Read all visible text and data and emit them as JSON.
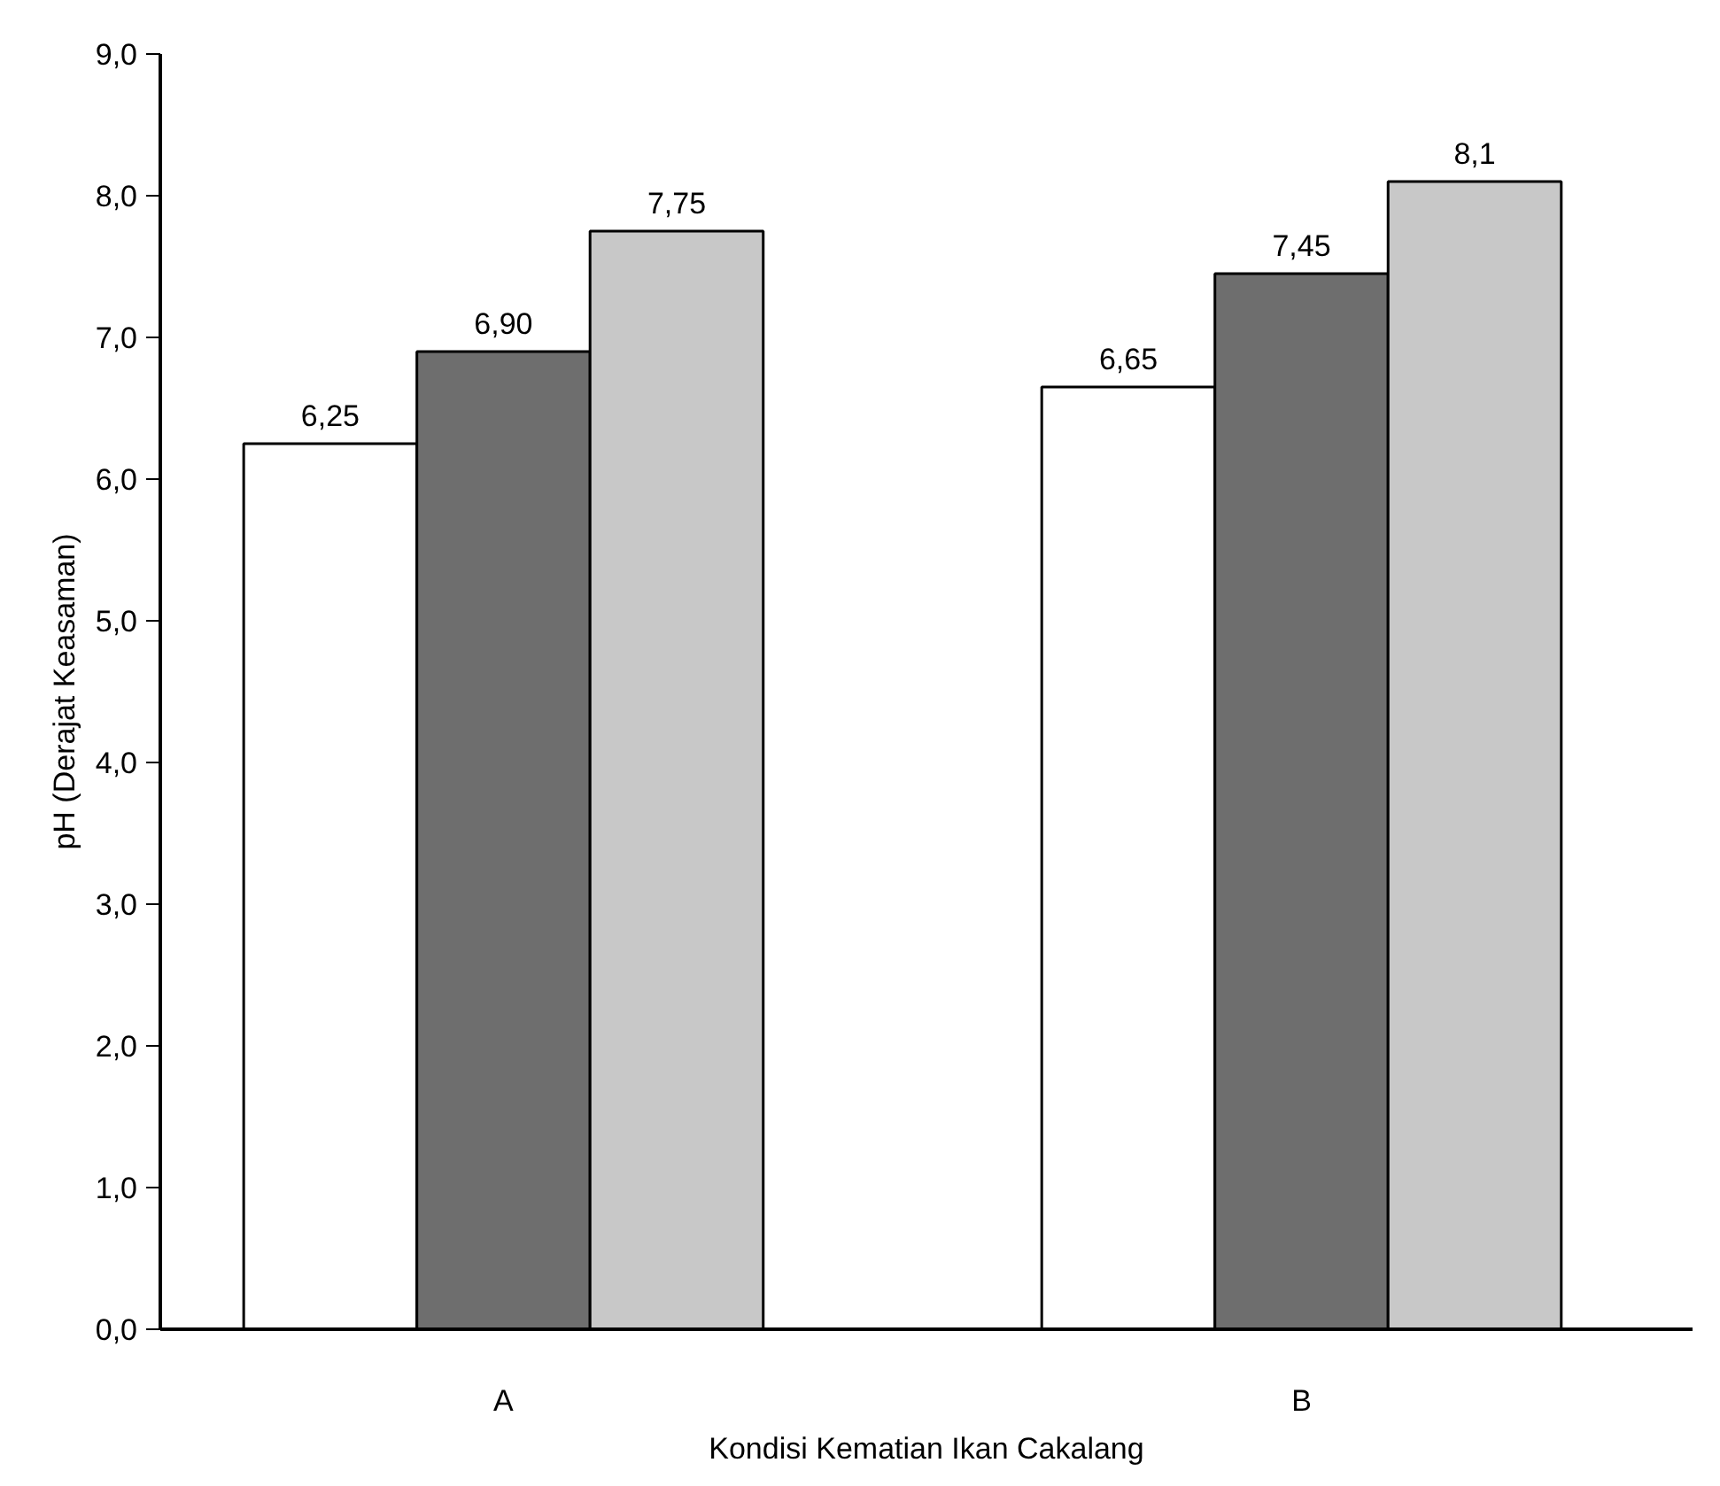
{
  "chart_data": {
    "type": "bar",
    "xlabel": "Kondisi Kematian Ikan Cakalang",
    "ylabel": "pH (Derajat Keasaman)",
    "categories": [
      "A",
      "B"
    ],
    "series": [
      {
        "color": "#ffffff",
        "values": [
          6.25,
          6.65
        ],
        "value_labels": [
          "6,25",
          "6,65"
        ]
      },
      {
        "color": "#6e6e6e",
        "values": [
          6.9,
          7.45
        ],
        "value_labels": [
          "6,90",
          "7,45"
        ]
      },
      {
        "color": "#c8c8c8",
        "values": [
          7.75,
          8.1
        ],
        "value_labels": [
          "7,75",
          "8,1"
        ]
      }
    ],
    "ylim": [
      0,
      9
    ],
    "yticks": [
      {
        "value": 0,
        "label": "0,0"
      },
      {
        "value": 1,
        "label": "1,0"
      },
      {
        "value": 2,
        "label": "2,0"
      },
      {
        "value": 3,
        "label": "3,0"
      },
      {
        "value": 4,
        "label": "4,0"
      },
      {
        "value": 5,
        "label": "5,0"
      },
      {
        "value": 6,
        "label": "6,0"
      },
      {
        "value": 7,
        "label": "7,0"
      },
      {
        "value": 8,
        "label": "8,0"
      },
      {
        "value": 9,
        "label": "9,0"
      }
    ],
    "grid": false
  }
}
